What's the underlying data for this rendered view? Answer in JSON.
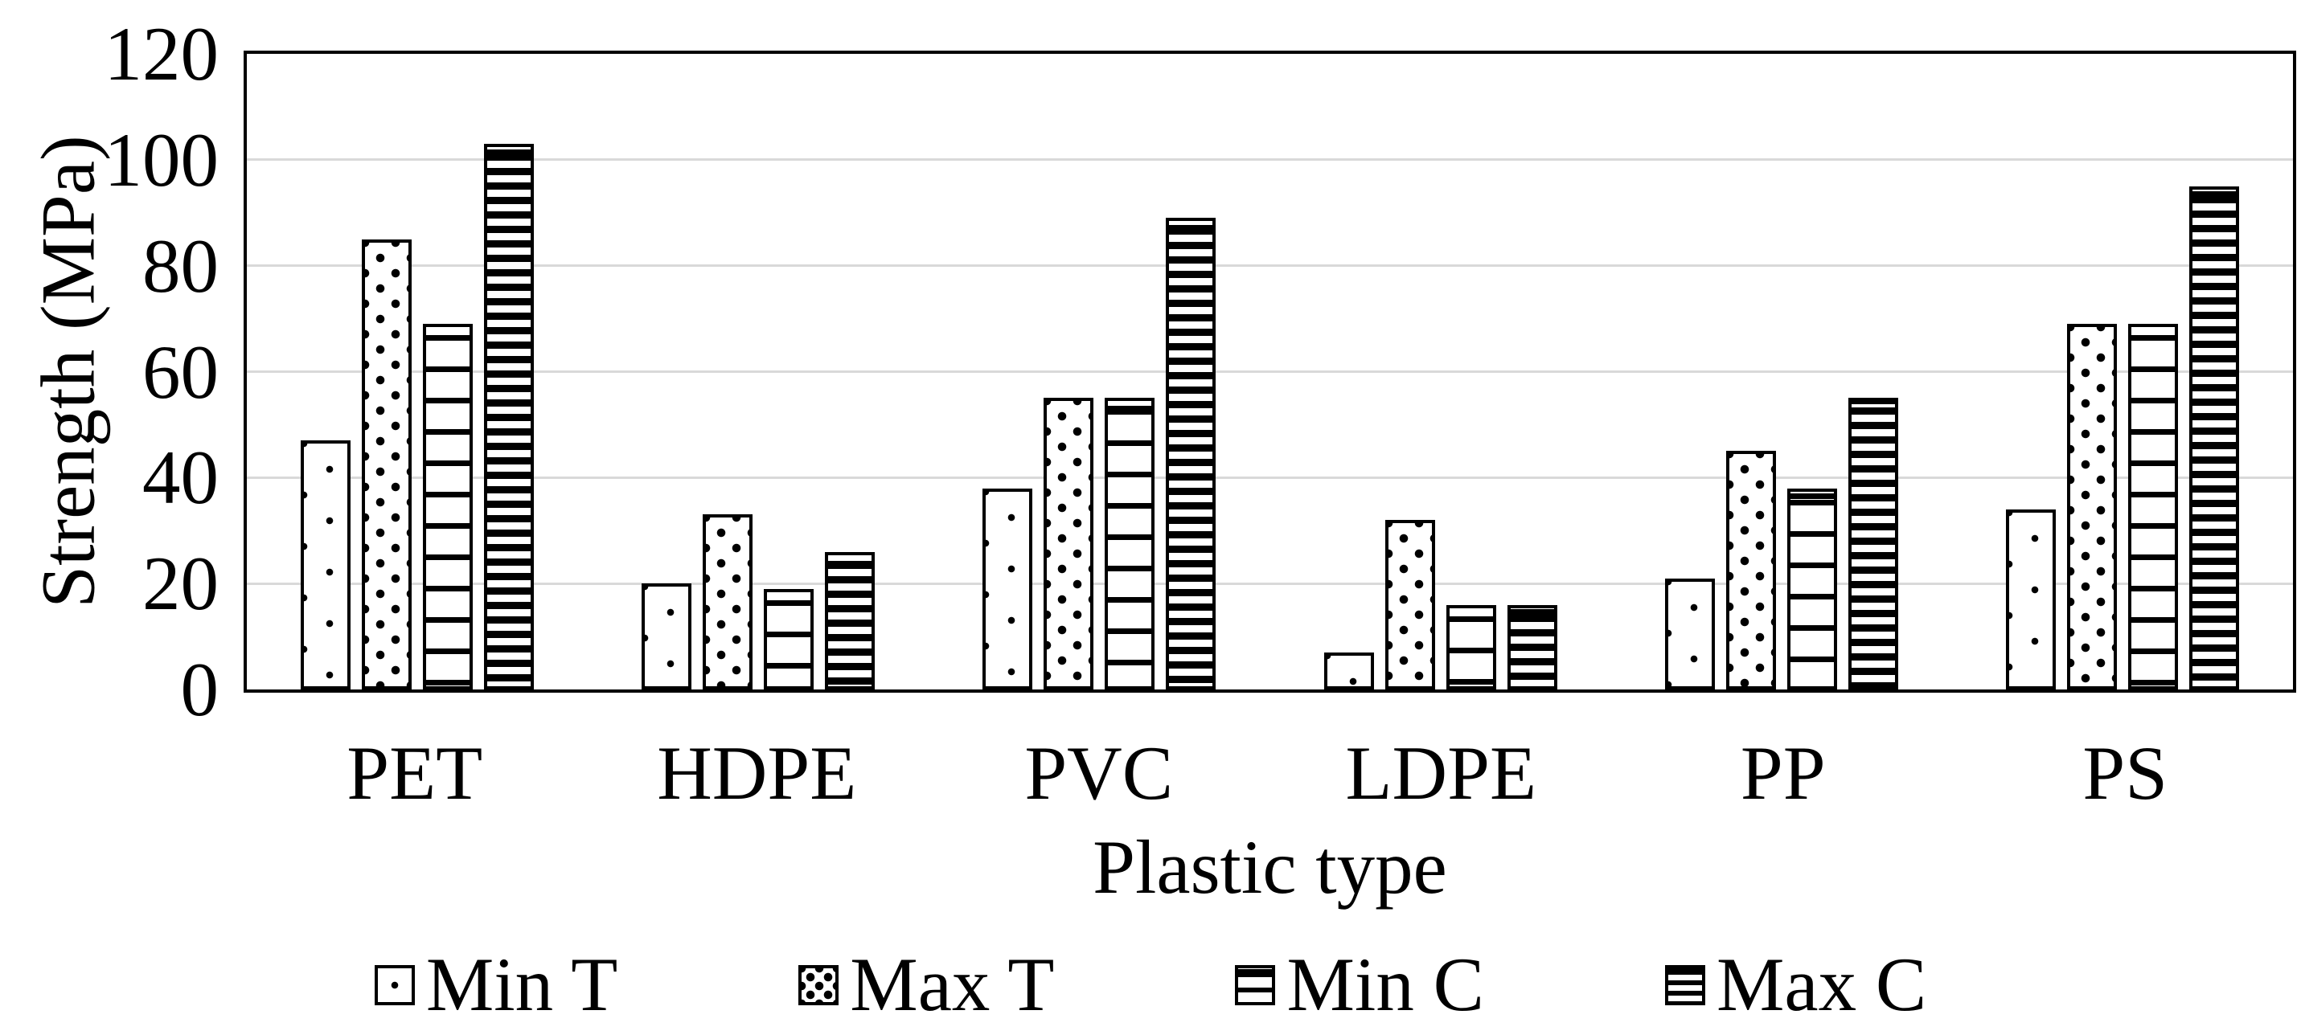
{
  "chart_data": {
    "type": "bar",
    "title": "",
    "categories": [
      "PET",
      "HDPE",
      "PVC",
      "LDPE",
      "PP",
      "PS"
    ],
    "series": [
      {
        "name": "Min T",
        "pattern": "dots-sparse",
        "values": [
          47,
          20,
          38,
          7,
          21,
          34
        ]
      },
      {
        "name": "Max T",
        "pattern": "dots-dense",
        "values": [
          85,
          33,
          55,
          32,
          45,
          69
        ]
      },
      {
        "name": "Min C",
        "pattern": "hlines-wide",
        "values": [
          69,
          19,
          55,
          16,
          38,
          69
        ]
      },
      {
        "name": "Max C",
        "pattern": "hlines-dense",
        "values": [
          103,
          26,
          89,
          16,
          55,
          95
        ]
      }
    ],
    "xlabel": "Plastic type",
    "ylabel": "Strength (MPa)",
    "ylim": [
      0,
      120
    ],
    "yticks": [
      0,
      20,
      40,
      60,
      80,
      100,
      120
    ],
    "grid": true,
    "legend_position": "bottom"
  },
  "colors": {
    "background": "#ffffff",
    "bar_fill": "#ffffff",
    "bar_border": "#000000",
    "gridline": "#d9d9d9",
    "axis": "#000000",
    "text": "#000000"
  }
}
